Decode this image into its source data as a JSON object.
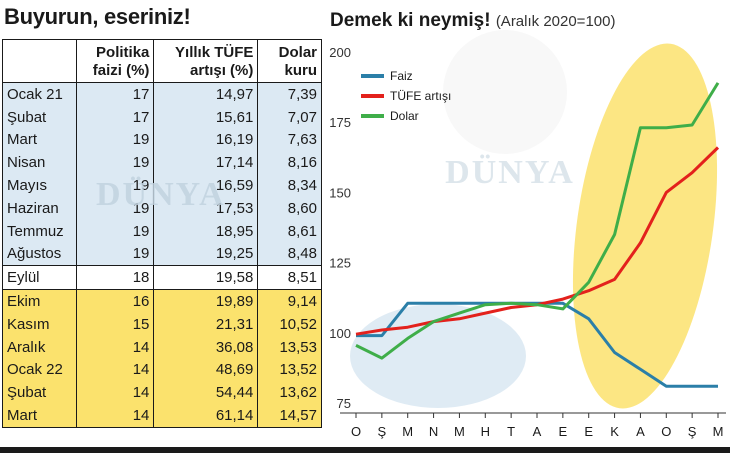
{
  "left_title": "Buyurun, eseriniz!",
  "table": {
    "headers": [
      {
        "line1": "",
        "line2": ""
      },
      {
        "line1": "Politika",
        "line2": "faizi (%)"
      },
      {
        "line1": "Yıllık TÜFE",
        "line2": "artışı (%)"
      },
      {
        "line1": "Dolar",
        "line2": "kuru"
      }
    ],
    "rows": [
      {
        "month": "Ocak 21",
        "rate": "17",
        "cpi": "14,97",
        "usd": "7,39",
        "band": "blue"
      },
      {
        "month": "Şubat",
        "rate": "17",
        "cpi": "15,61",
        "usd": "7,07",
        "band": "blue"
      },
      {
        "month": "Mart",
        "rate": "19",
        "cpi": "16,19",
        "usd": "7,63",
        "band": "blue"
      },
      {
        "month": "Nisan",
        "rate": "19",
        "cpi": "17,14",
        "usd": "8,16",
        "band": "blue"
      },
      {
        "month": "Mayıs",
        "rate": "19",
        "cpi": "16,59",
        "usd": "8,34",
        "band": "blue"
      },
      {
        "month": "Haziran",
        "rate": "19",
        "cpi": "17,53",
        "usd": "8,60",
        "band": "blue"
      },
      {
        "month": "Temmuz",
        "rate": "19",
        "cpi": "18,95",
        "usd": "8,61",
        "band": "blue"
      },
      {
        "month": "Ağustos",
        "rate": "19",
        "cpi": "19,25",
        "usd": "8,48",
        "band": "blue"
      },
      {
        "month": "Eylül",
        "rate": "18",
        "cpi": "19,58",
        "usd": "8,51",
        "band": "white"
      },
      {
        "month": "Ekim",
        "rate": "16",
        "cpi": "19,89",
        "usd": "9,14",
        "band": "yellow"
      },
      {
        "month": "Kasım",
        "rate": "15",
        "cpi": "21,31",
        "usd": "10,52",
        "band": "yellow"
      },
      {
        "month": "Aralık",
        "rate": "14",
        "cpi": "36,08",
        "usd": "13,53",
        "band": "yellow"
      },
      {
        "month": "Ocak 22",
        "rate": "14",
        "cpi": "48,69",
        "usd": "13,52",
        "band": "yellow"
      },
      {
        "month": "Şubat",
        "rate": "14",
        "cpi": "54,44",
        "usd": "13,62",
        "band": "yellow"
      },
      {
        "month": "Mart",
        "rate": "14",
        "cpi": "61,14",
        "usd": "14,57",
        "band": "yellow"
      }
    ]
  },
  "watermark": "DÜNYA",
  "colors": {
    "faiz": "#2b7fa8",
    "tufe": "#e3211c",
    "dolar": "#3fae49",
    "blue_band": "#dce9f3",
    "yellow_band": "#fbe26d"
  },
  "chart_data": {
    "type": "line",
    "title": "Demek ki neymiş!",
    "subtitle": "(Aralık 2020=100)",
    "x": [
      "O",
      "Ş",
      "M",
      "N",
      "M",
      "H",
      "T",
      "A",
      "E",
      "E",
      "K",
      "A",
      "O",
      "Ş",
      "M"
    ],
    "ylim": [
      75,
      200
    ],
    "yticks": [
      75,
      100,
      125,
      150,
      175,
      200
    ],
    "grid": false,
    "legend": "top-left",
    "series": [
      {
        "name": "Faiz",
        "color": "#2b7fa8",
        "values": [
          99,
          99,
          110.5,
          110.5,
          110.5,
          110.5,
          110.5,
          110.5,
          110.5,
          105,
          93,
          87,
          81,
          81,
          81
        ]
      },
      {
        "name": "TÜFE artışı",
        "color": "#e3211c",
        "values": [
          99.5,
          101,
          102,
          104,
          105,
          107,
          109,
          110,
          112,
          115,
          119,
          132,
          150,
          157,
          166
        ]
      },
      {
        "name": "Dolar",
        "color": "#3fae49",
        "values": [
          95.5,
          91,
          98,
          104,
          107,
          110,
          110.5,
          110,
          108.5,
          118,
          135,
          173,
          173,
          174,
          189
        ]
      }
    ]
  }
}
